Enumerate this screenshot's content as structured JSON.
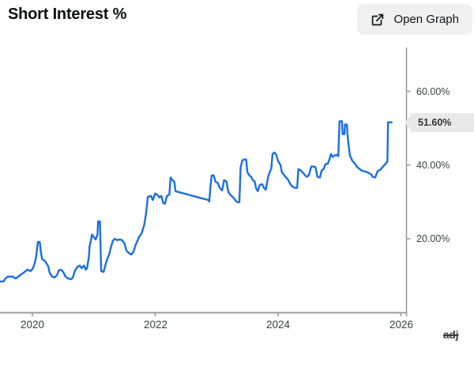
{
  "header": {
    "title": "Short Interest %",
    "open_graph_label": "Open Graph"
  },
  "footer": {
    "adj_label": "adj"
  },
  "chart": {
    "y_tick_labels": [
      "60.00%",
      "40.00%",
      "20.00%"
    ],
    "x_tick_labels": [
      "2020",
      "2022",
      "2024",
      "2026"
    ],
    "last_value_label": "51.60%"
  },
  "chart_data": {
    "type": "line",
    "title": "Short Interest %",
    "style": "step-like line",
    "line_color": "#1a6ee8",
    "axis_color": "#9b9b9b",
    "legend": "none",
    "grid": false,
    "y_axis_side": "right",
    "xlabel": "",
    "ylabel": "",
    "xlim": [
      2019.47,
      2026.09
    ],
    "ylim": [
      0,
      72
    ],
    "x_ticks": [
      2020,
      2022,
      2024,
      2026
    ],
    "y_ticks": [
      20,
      40,
      60
    ],
    "y_tick_format": "percent",
    "last_value": 51.6,
    "series": [
      {
        "name": "Short Interest %",
        "points": [
          [
            2019.47,
            8.4
          ],
          [
            2019.53,
            8.4
          ],
          [
            2019.56,
            9.2
          ],
          [
            2019.6,
            9.7
          ],
          [
            2019.68,
            9.7
          ],
          [
            2019.73,
            9.2
          ],
          [
            2019.8,
            10.1
          ],
          [
            2019.86,
            10.8
          ],
          [
            2019.92,
            11.6
          ],
          [
            2019.97,
            11.2
          ],
          [
            2020.01,
            12.0
          ],
          [
            2020.04,
            13.5
          ],
          [
            2020.06,
            15.1
          ],
          [
            2020.08,
            17.8
          ],
          [
            2020.09,
            19.1
          ],
          [
            2020.12,
            19.1
          ],
          [
            2020.14,
            16.1
          ],
          [
            2020.16,
            14.4
          ],
          [
            2020.2,
            14.0
          ],
          [
            2020.23,
            13.3
          ],
          [
            2020.26,
            12.4
          ],
          [
            2020.28,
            10.8
          ],
          [
            2020.32,
            9.7
          ],
          [
            2020.36,
            9.5
          ],
          [
            2020.4,
            10.1
          ],
          [
            2020.43,
            11.4
          ],
          [
            2020.47,
            11.6
          ],
          [
            2020.5,
            11.0
          ],
          [
            2020.54,
            9.7
          ],
          [
            2020.58,
            9.2
          ],
          [
            2020.63,
            9.0
          ],
          [
            2020.66,
            9.5
          ],
          [
            2020.69,
            11.2
          ],
          [
            2020.73,
            12.3
          ],
          [
            2020.77,
            12.7
          ],
          [
            2020.8,
            12.0
          ],
          [
            2020.84,
            12.7
          ],
          [
            2020.87,
            11.6
          ],
          [
            2020.89,
            12.0
          ],
          [
            2020.92,
            15.0
          ],
          [
            2020.93,
            17.8
          ],
          [
            2020.95,
            19.4
          ],
          [
            2020.97,
            21.1
          ],
          [
            2021.0,
            20.4
          ],
          [
            2021.03,
            19.8
          ],
          [
            2021.06,
            21.1
          ],
          [
            2021.07,
            24.7
          ],
          [
            2021.1,
            24.7
          ],
          [
            2021.12,
            11.2
          ],
          [
            2021.16,
            11.0
          ],
          [
            2021.19,
            12.9
          ],
          [
            2021.22,
            14.6
          ],
          [
            2021.25,
            15.7
          ],
          [
            2021.28,
            17.8
          ],
          [
            2021.31,
            19.4
          ],
          [
            2021.34,
            20.0
          ],
          [
            2021.38,
            19.6
          ],
          [
            2021.42,
            19.8
          ],
          [
            2021.46,
            19.6
          ],
          [
            2021.5,
            18.7
          ],
          [
            2021.53,
            16.8
          ],
          [
            2021.57,
            16.1
          ],
          [
            2021.61,
            15.7
          ],
          [
            2021.65,
            16.6
          ],
          [
            2021.68,
            18.3
          ],
          [
            2021.71,
            19.4
          ],
          [
            2021.74,
            20.6
          ],
          [
            2021.78,
            21.5
          ],
          [
            2021.82,
            23.7
          ],
          [
            2021.85,
            26.7
          ],
          [
            2021.88,
            31.4
          ],
          [
            2021.93,
            31.6
          ],
          [
            2021.96,
            30.5
          ],
          [
            2022.0,
            32.3
          ],
          [
            2022.04,
            31.8
          ],
          [
            2022.07,
            31.2
          ],
          [
            2022.1,
            31.6
          ],
          [
            2022.13,
            29.7
          ],
          [
            2022.16,
            29.5
          ],
          [
            2022.19,
            31.6
          ],
          [
            2022.23,
            32.0
          ],
          [
            2022.25,
            36.6
          ],
          [
            2022.28,
            35.9
          ],
          [
            2022.31,
            35.5
          ],
          [
            2022.33,
            32.9
          ],
          [
            2022.86,
            30.5
          ],
          [
            2022.88,
            30.1
          ],
          [
            2022.9,
            34.4
          ],
          [
            2022.92,
            37.2
          ],
          [
            2022.95,
            37.2
          ],
          [
            2022.98,
            35.5
          ],
          [
            2023.02,
            35.1
          ],
          [
            2023.05,
            33.8
          ],
          [
            2023.09,
            33.1
          ],
          [
            2023.12,
            35.9
          ],
          [
            2023.16,
            35.5
          ],
          [
            2023.19,
            32.7
          ],
          [
            2023.23,
            31.8
          ],
          [
            2023.27,
            31.2
          ],
          [
            2023.31,
            30.3
          ],
          [
            2023.34,
            29.9
          ],
          [
            2023.37,
            29.9
          ],
          [
            2023.39,
            39.4
          ],
          [
            2023.42,
            41.3
          ],
          [
            2023.45,
            41.5
          ],
          [
            2023.48,
            41.5
          ],
          [
            2023.5,
            38.1
          ],
          [
            2023.53,
            37.2
          ],
          [
            2023.56,
            36.8
          ],
          [
            2023.59,
            35.9
          ],
          [
            2023.62,
            35.5
          ],
          [
            2023.64,
            33.8
          ],
          [
            2023.67,
            32.9
          ],
          [
            2023.7,
            34.6
          ],
          [
            2023.74,
            34.8
          ],
          [
            2023.77,
            33.8
          ],
          [
            2023.8,
            33.3
          ],
          [
            2023.84,
            37.0
          ],
          [
            2023.87,
            38.3
          ],
          [
            2023.89,
            39.1
          ],
          [
            2023.91,
            43.0
          ],
          [
            2023.94,
            43.4
          ],
          [
            2023.97,
            42.8
          ],
          [
            2024.0,
            41.1
          ],
          [
            2024.04,
            40.0
          ],
          [
            2024.06,
            38.1
          ],
          [
            2024.1,
            37.2
          ],
          [
            2024.13,
            36.6
          ],
          [
            2024.16,
            36.1
          ],
          [
            2024.19,
            35.1
          ],
          [
            2024.23,
            34.2
          ],
          [
            2024.27,
            33.8
          ],
          [
            2024.31,
            33.8
          ],
          [
            2024.33,
            38.9
          ],
          [
            2024.37,
            38.5
          ],
          [
            2024.41,
            37.8
          ],
          [
            2024.44,
            37.2
          ],
          [
            2024.47,
            36.8
          ],
          [
            2024.5,
            37.2
          ],
          [
            2024.54,
            39.6
          ],
          [
            2024.58,
            39.6
          ],
          [
            2024.61,
            39.4
          ],
          [
            2024.64,
            36.8
          ],
          [
            2024.68,
            36.6
          ],
          [
            2024.71,
            38.5
          ],
          [
            2024.74,
            38.9
          ],
          [
            2024.77,
            40.2
          ],
          [
            2024.81,
            40.4
          ],
          [
            2024.84,
            41.7
          ],
          [
            2024.86,
            43.0
          ],
          [
            2024.89,
            42.2
          ],
          [
            2024.92,
            42.6
          ],
          [
            2024.95,
            42.8
          ],
          [
            2024.98,
            42.4
          ],
          [
            2025.0,
            51.9
          ],
          [
            2025.04,
            51.9
          ],
          [
            2025.05,
            48.4
          ],
          [
            2025.08,
            48.4
          ],
          [
            2025.09,
            51.0
          ],
          [
            2025.12,
            51.0
          ],
          [
            2025.13,
            48.4
          ],
          [
            2025.14,
            46.7
          ],
          [
            2025.17,
            42.6
          ],
          [
            2025.21,
            41.1
          ],
          [
            2025.25,
            40.4
          ],
          [
            2025.29,
            39.4
          ],
          [
            2025.33,
            38.9
          ],
          [
            2025.36,
            38.5
          ],
          [
            2025.4,
            38.3
          ],
          [
            2025.44,
            38.1
          ],
          [
            2025.48,
            37.8
          ],
          [
            2025.52,
            37.4
          ],
          [
            2025.54,
            36.8
          ],
          [
            2025.58,
            36.6
          ],
          [
            2025.62,
            38.3
          ],
          [
            2025.66,
            38.7
          ],
          [
            2025.7,
            39.4
          ],
          [
            2025.74,
            40.2
          ],
          [
            2025.78,
            40.9
          ],
          [
            2025.79,
            51.6
          ],
          [
            2025.85,
            51.6
          ]
        ]
      }
    ]
  }
}
